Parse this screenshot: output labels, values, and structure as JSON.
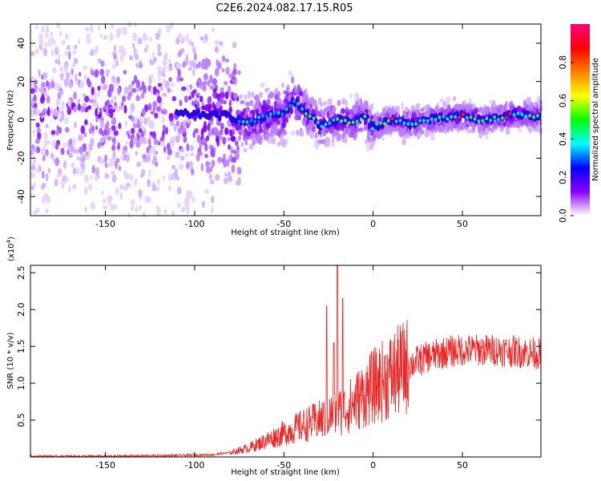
{
  "title": "C2E6.2024.082.17.15.R05",
  "chart_data": [
    {
      "type": "heatmap",
      "xlabel": "Height of straight line (km)",
      "ylabel": "Frequency (Hz)",
      "xlim": [
        -192,
        94
      ],
      "ylim": [
        -50,
        50
      ],
      "xticks": [
        -150,
        -100,
        -50,
        0,
        50
      ],
      "yticks": [
        -40,
        -20,
        0,
        20,
        40
      ],
      "colorbar": {
        "label": "Normalized spectral amplitude",
        "range": [
          0,
          1
        ],
        "ticks": [
          0.0,
          0.2,
          0.4,
          0.6,
          0.8
        ],
        "colors": [
          "#ffffff",
          "#8a00ff",
          "#0000ff",
          "#00ffff",
          "#00ff00",
          "#ffff00",
          "#ff8000",
          "#ff0000",
          "#ff0080"
        ]
      },
      "ridge": {
        "x": [
          -192,
          -150,
          -100,
          -80,
          -70,
          -60,
          -50,
          -45,
          -40,
          -35,
          -30,
          -20,
          -10,
          -5,
          0,
          10,
          20,
          30,
          40,
          50,
          60,
          70,
          80,
          90,
          94
        ],
        "y": [
          2,
          3,
          3,
          2,
          -2,
          2,
          3,
          10,
          6,
          2,
          -3,
          0,
          -1,
          2,
          -4,
          0,
          -2,
          0,
          1,
          2,
          0,
          1,
          3,
          2,
          2
        ]
      }
    },
    {
      "type": "line",
      "xlabel": "Height of straight line (km)",
      "ylabel": "SNR (10 * v/v)",
      "scale_label": "(x10",
      "scale_exp": "4",
      "scale_close": ")",
      "xlim": [
        -192,
        94
      ],
      "ylim": [
        0,
        2.6
      ],
      "xticks": [
        -150,
        -100,
        -50,
        0,
        50
      ],
      "yticks": [
        0.5,
        1.0,
        1.5,
        2.0,
        2.5
      ],
      "ytick_labels": [
        "0.5",
        "1.0",
        "1.5",
        "2.0",
        "2.5"
      ],
      "color": "#ee2222",
      "envelope": {
        "x": [
          -192,
          -150,
          -110,
          -90,
          -80,
          -70,
          -60,
          -50,
          -40,
          -30,
          -25,
          -20,
          -15,
          -10,
          -5,
          0,
          10,
          20,
          30,
          40,
          50,
          60,
          70,
          80,
          94
        ],
        "y": [
          0.01,
          0.01,
          0.02,
          0.03,
          0.06,
          0.12,
          0.22,
          0.32,
          0.42,
          0.5,
          0.55,
          0.6,
          0.65,
          0.75,
          0.85,
          0.95,
          1.1,
          1.25,
          1.35,
          1.42,
          1.45,
          1.45,
          1.45,
          1.43,
          1.4
        ]
      },
      "peaks": [
        {
          "x": -20,
          "y": 2.6
        },
        {
          "x": -17,
          "y": 2.15
        },
        {
          "x": -26,
          "y": 2.05
        },
        {
          "x": -22,
          "y": 1.55
        }
      ]
    }
  ]
}
